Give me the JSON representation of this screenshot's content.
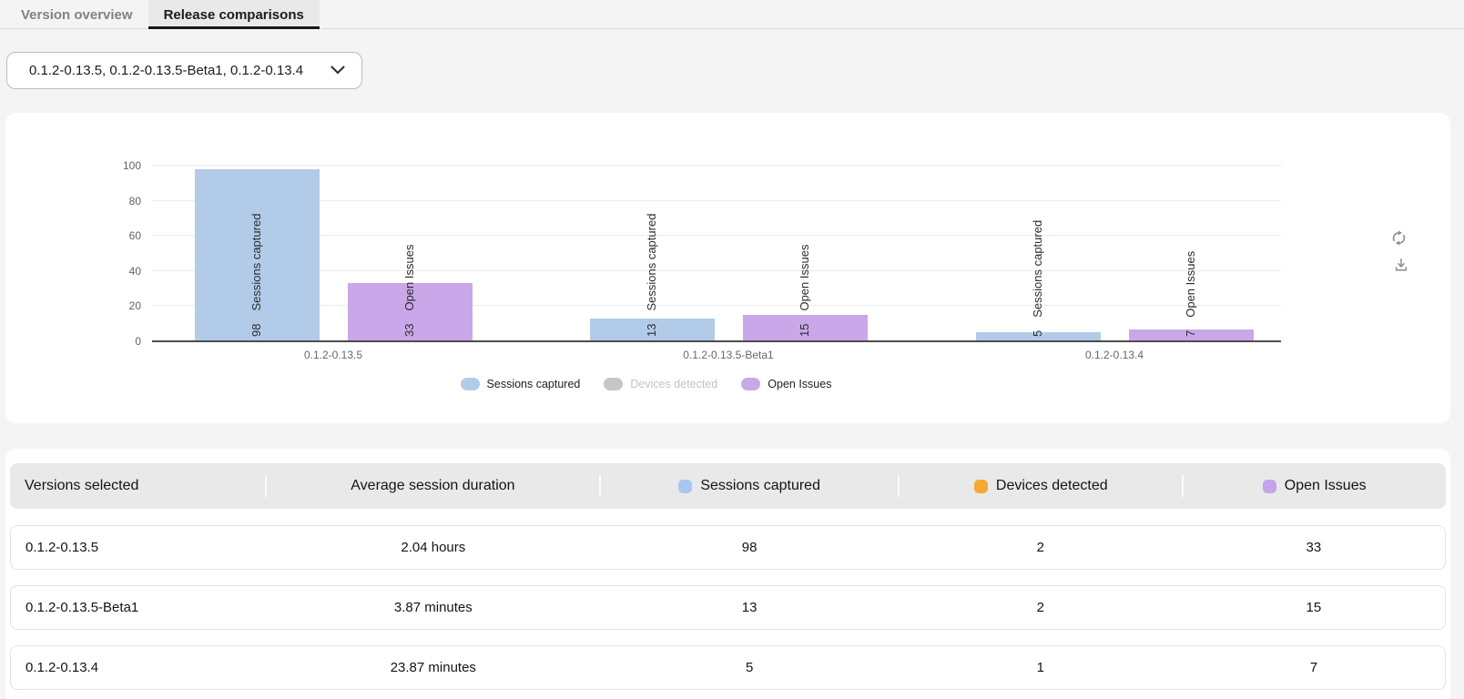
{
  "tabs": [
    {
      "label": "Version overview",
      "active": false
    },
    {
      "label": "Release comparisons",
      "active": true
    }
  ],
  "version_selector": {
    "value": "0.1.2-0.13.5, 0.1.2-0.13.5-Beta1, 0.1.2-0.13.4",
    "chevron_icon": "chevron-down-icon"
  },
  "chart_panel": {
    "icons": [
      "refresh-icon",
      "download-icon"
    ]
  },
  "chart_data": {
    "type": "bar",
    "categories": [
      "0.1.2-0.13.5",
      "0.1.2-0.13.5-Beta1",
      "0.1.2-0.13.4"
    ],
    "series": [
      {
        "name": "Sessions captured",
        "values": [
          98,
          13,
          5
        ],
        "color": "#b2cbe9",
        "plotted": true
      },
      {
        "name": "Devices detected",
        "values": [
          2,
          2,
          1
        ],
        "color": "#f6a831",
        "plotted": false
      },
      {
        "name": "Open Issues",
        "values": [
          33,
          15,
          7
        ],
        "color": "#c9a7e8",
        "plotted": true
      }
    ],
    "ylim": [
      0,
      100
    ],
    "yticks": [
      0,
      20,
      40,
      60,
      80,
      100
    ],
    "grid": true,
    "legend_position": "bottom",
    "bar_labels": "value and series name rotated 90 degrees at bar base",
    "disabled_legend_color": "#c6c6c6"
  },
  "table": {
    "columns": [
      {
        "label": "Versions selected",
        "dot_color": null
      },
      {
        "label": "Average session duration",
        "dot_color": null
      },
      {
        "label": "Sessions captured",
        "dot_color": "#a9c7ee"
      },
      {
        "label": "Devices detected",
        "dot_color": "#f6a831"
      },
      {
        "label": "Open Issues",
        "dot_color": "#c5a4eb"
      }
    ],
    "rows": [
      [
        "0.1.2-0.13.5",
        "2.04 hours",
        "98",
        "2",
        "33"
      ],
      [
        "0.1.2-0.13.5-Beta1",
        "3.87 minutes",
        "13",
        "2",
        "15"
      ],
      [
        "0.1.2-0.13.4",
        "23.87 minutes",
        "5",
        "1",
        "7"
      ]
    ]
  }
}
